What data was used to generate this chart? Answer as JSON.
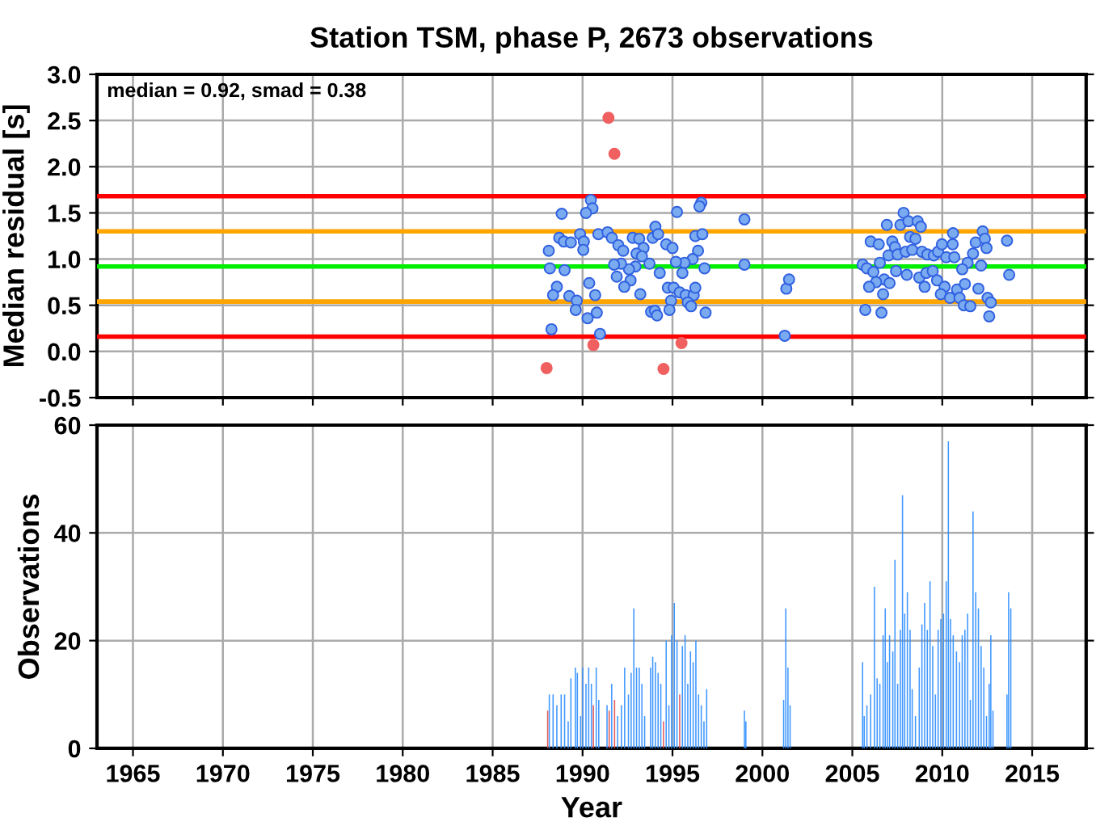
{
  "chart_data": [
    {
      "type": "scatter",
      "title": "Station TSM, phase P, 2673 observations",
      "ylabel": "Median residual [s]",
      "xlim": [
        1963,
        2018
      ],
      "xticks": [
        1965,
        1970,
        1975,
        1980,
        1985,
        1990,
        1995,
        2000,
        2005,
        2010,
        2015
      ],
      "ylim": [
        -0.5,
        3.0
      ],
      "yticks": [
        -0.5,
        {
          "value": 0,
          "label": "0.0"
        },
        0.5,
        {
          "value": 1,
          "label": "1.0"
        },
        1.5,
        {
          "value": 2,
          "label": "2.0"
        },
        2.5,
        {
          "value": 3,
          "label": "3.0"
        }
      ],
      "tick_labels": "y",
      "grid": true,
      "marker": "circle",
      "annotations": [
        "median = 0.92, smad = 0.38"
      ],
      "ref_lines": [
        {
          "axis": "y",
          "value": 1.68,
          "color": "#ff0000"
        },
        {
          "axis": "y",
          "value": 1.3,
          "color": "#ffa500"
        },
        {
          "axis": "y",
          "value": 0.92,
          "color": "#00ee00"
        },
        {
          "axis": "y",
          "value": 0.54,
          "color": "#ffa500"
        },
        {
          "axis": "y",
          "value": 0.16,
          "color": "#ff0000"
        }
      ],
      "series": [
        {
          "color": "#7aaaf0",
          "x": [
            1990.46,
            1990.55,
            1990.19,
            1988.84,
            1995.25,
            1996.6,
            1996.5,
            1999.0,
            1988.7,
            1988.96,
            1989.35,
            1989.86,
            1990.07,
            1990.04,
            1988.12,
            1990.88,
            1991.39,
            1991.63,
            1991.99,
            1992.26,
            1992.79,
            1993.15,
            1993.39,
            1993.0,
            1993.3,
            1993.9,
            1994.05,
            1994.2,
            1994.65,
            1995.0,
            1996.27,
            1996.66,
            1996.42,
            1996.12,
            1995.67,
            1995.19,
            1993.72,
            1992.94,
            1992.58,
            1992.14,
            1991.75,
            1991.9,
            1992.67,
            1992.32,
            1994.29,
            1995.55,
            1996.78,
            1999.0,
            1988.18,
            1989.0,
            1988.57,
            1988.36,
            1990.37,
            1990.7,
            1989.26,
            1989.68,
            1989.62,
            1990.28,
            1990.79,
            1988.27,
            1990.97,
            1993.21,
            1994.74,
            1995.07,
            1995.4,
            1995.73,
            1996.18,
            1996.27,
            1994.92,
            1995.85,
            1996.03,
            1994.83,
            1993.81,
            1994.02,
            1994.14,
            1996.84,
            2001.33,
            2001.48,
            2001.24,
            2007.85,
            2006.92,
            2007.67,
            2008.12,
            2008.63,
            2008.81,
            2006.02,
            2006.47,
            2007.22,
            2007.37,
            2007.01,
            2007.52,
            2007.97,
            2008.33,
            2008.21,
            2008.51,
            2008.87,
            2009.17,
            2009.53,
            2009.77,
            2009.98,
            2010.6,
            2010.58,
            2010.22,
            2010.67,
            2012.25,
            2011.86,
            2012.37,
            2013.6,
            2012.46,
            2011.71,
            2011.41,
            2011.11,
            2012.16,
            2005.57,
            2005.81,
            2006.17,
            2006.53,
            2006.77,
            2006.32,
            2005.93,
            2007.07,
            2007.43,
            2008.03,
            2008.72,
            2009.11,
            2009.47,
            2009.71,
            2009.02,
            2010.13,
            2009.92,
            2010.43,
            2010.82,
            2010.96,
            2011.2,
            2011.56,
            2011.26,
            2012.01,
            2012.52,
            2012.7,
            2012.61,
            2013.72,
            2005.72,
            2006.62,
            2006.71
          ],
          "values": [
            1.64,
            1.55,
            1.5,
            1.49,
            1.51,
            1.61,
            1.57,
            1.43,
            1.23,
            1.19,
            1.18,
            1.27,
            1.19,
            1.1,
            1.09,
            1.27,
            1.29,
            1.23,
            1.15,
            1.09,
            1.23,
            1.22,
            1.12,
            1.06,
            1.03,
            1.23,
            1.35,
            1.27,
            1.16,
            1.12,
            1.25,
            1.27,
            1.09,
            1.0,
            0.96,
            0.97,
            0.95,
            0.92,
            0.89,
            0.95,
            0.94,
            0.81,
            0.77,
            0.7,
            0.85,
            0.85,
            0.9,
            0.94,
            0.9,
            0.88,
            0.7,
            0.61,
            0.74,
            0.61,
            0.6,
            0.55,
            0.45,
            0.36,
            0.42,
            0.24,
            0.19,
            0.62,
            0.69,
            0.69,
            0.64,
            0.61,
            0.61,
            0.69,
            0.55,
            0.53,
            0.49,
            0.45,
            0.43,
            0.44,
            0.39,
            0.42,
            0.68,
            0.78,
            0.17,
            1.5,
            1.37,
            1.37,
            1.41,
            1.41,
            1.35,
            1.19,
            1.16,
            1.19,
            1.13,
            1.04,
            1.05,
            1.08,
            1.1,
            1.24,
            1.22,
            1.08,
            1.05,
            1.04,
            1.08,
            1.16,
            1.28,
            1.16,
            1.02,
            1.02,
            1.3,
            1.18,
            1.22,
            1.2,
            1.12,
            1.06,
            0.96,
            0.89,
            0.93,
            0.94,
            0.9,
            0.86,
            0.96,
            0.78,
            0.75,
            0.7,
            0.74,
            0.87,
            0.83,
            0.8,
            0.85,
            0.87,
            0.77,
            0.7,
            0.7,
            0.62,
            0.58,
            0.67,
            0.58,
            0.5,
            0.49,
            0.73,
            0.68,
            0.58,
            0.53,
            0.38,
            0.83,
            0.45,
            0.42,
            0.62
          ]
        },
        {
          "color": "#f06060",
          "x": [
            1991.44,
            1991.77,
            1988.0,
            1990.6,
            1994.5,
            1995.5
          ],
          "values": [
            2.53,
            2.14,
            -0.18,
            0.07,
            -0.19,
            0.09
          ]
        }
      ]
    },
    {
      "type": "bar",
      "ylabel": "Observations",
      "xlabel": "Year",
      "xlim": [
        1963,
        2018
      ],
      "xticks": [
        1965,
        1970,
        1975,
        1980,
        1985,
        1990,
        1995,
        2000,
        2005,
        2010,
        2015
      ],
      "ylim": [
        0,
        60
      ],
      "yticks": [
        0,
        20,
        40,
        60
      ],
      "grid": true,
      "series": [
        {
          "color": "#2a8cff",
          "x": [
            1988.15,
            1988.36,
            1988.57,
            1988.81,
            1989.0,
            1989.2,
            1989.35,
            1989.6,
            1989.71,
            1989.89,
            1990.01,
            1990.19,
            1990.34,
            1990.49,
            1990.76,
            1990.9,
            1991.36,
            1991.62,
            1991.95,
            1992.16,
            1992.34,
            1992.55,
            1992.7,
            1992.85,
            1993.0,
            1993.15,
            1993.3,
            1993.45,
            1993.78,
            1993.9,
            1994.05,
            1994.2,
            1994.35,
            1994.65,
            1994.8,
            1994.95,
            1995.1,
            1995.25,
            1995.55,
            1995.7,
            1995.85,
            1996.0,
            1996.15,
            1996.3,
            1996.45,
            1996.6,
            1996.75,
            1996.9,
            1999.0,
            1999.08,
            2001.18,
            2001.3,
            2001.42,
            2001.54,
            2005.57,
            2005.66,
            2005.81,
            2006.02,
            2006.23,
            2006.38,
            2006.53,
            2006.71,
            2006.83,
            2006.95,
            2007.07,
            2007.25,
            2007.37,
            2007.52,
            2007.67,
            2007.79,
            2007.91,
            2008.06,
            2008.21,
            2008.33,
            2008.51,
            2008.72,
            2008.87,
            2009.02,
            2009.17,
            2009.32,
            2009.47,
            2009.62,
            2009.77,
            2009.92,
            2010.07,
            2010.22,
            2010.34,
            2010.46,
            2010.61,
            2010.79,
            2010.96,
            2011.11,
            2011.26,
            2011.41,
            2011.56,
            2011.71,
            2011.86,
            2012.01,
            2012.16,
            2012.31,
            2012.46,
            2012.61,
            2012.7,
            2012.82,
            2013.6,
            2013.69,
            2013.81
          ],
          "values": [
            10,
            10,
            8,
            10,
            10,
            5,
            13,
            15,
            14,
            6,
            15,
            12,
            15,
            12,
            15,
            9,
            8,
            12,
            6,
            8,
            15,
            10,
            14,
            26,
            15,
            15,
            12,
            6,
            15,
            17,
            16,
            14,
            12,
            20,
            8,
            21,
            27,
            20,
            19,
            21,
            12,
            18,
            16,
            20,
            10,
            8,
            5,
            11,
            7,
            5,
            9,
            26,
            15,
            8,
            16,
            6,
            8,
            10,
            30,
            13,
            12,
            21,
            26,
            16,
            21,
            18,
            35,
            12,
            22,
            47,
            25,
            29,
            22,
            11,
            6,
            15,
            23,
            27,
            22,
            31,
            19,
            10,
            22,
            24,
            25,
            31,
            57,
            24,
            21,
            18,
            16,
            21,
            22,
            25,
            9,
            44,
            29,
            26,
            19,
            15,
            6,
            12,
            21,
            7,
            10,
            29,
            26
          ]
        },
        {
          "color": "#e04848",
          "x": [
            1988.06,
            1990.6,
            1991.48,
            1991.78,
            1994.5,
            1995.4
          ],
          "values": [
            7,
            8,
            7,
            9,
            5,
            10
          ]
        }
      ]
    }
  ]
}
